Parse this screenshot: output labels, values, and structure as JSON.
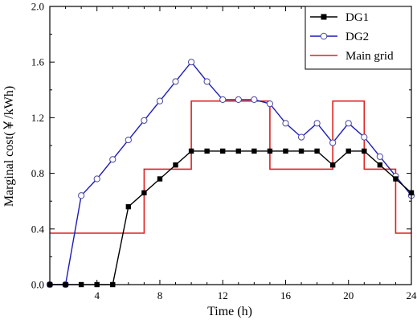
{
  "chart_data": {
    "type": "line",
    "xlabel": "Time (h)",
    "ylabel": "Marginal cost(￥/kWh)",
    "xlim": [
      1,
      24
    ],
    "ylim": [
      0.0,
      2.0
    ],
    "x_ticks": [
      4,
      8,
      12,
      16,
      20,
      24
    ],
    "x_tick_labels": [
      "4",
      "8",
      "12",
      "16",
      "20",
      "24"
    ],
    "y_ticks": [
      0.0,
      0.4,
      0.8,
      1.2,
      1.6,
      2.0
    ],
    "y_tick_labels": [
      "0.0",
      "0.4",
      "0.8",
      "1.2",
      "1.6",
      "2.0"
    ],
    "legend_position": "top-right",
    "series": [
      {
        "name": "DG1",
        "color": "#000000",
        "style": "line-square-filled",
        "x": [
          1,
          2,
          3,
          4,
          5,
          6,
          7,
          8,
          9,
          10,
          11,
          12,
          13,
          14,
          15,
          16,
          17,
          18,
          19,
          20,
          21,
          22,
          23,
          24
        ],
        "values": [
          0,
          0,
          0,
          0,
          0,
          0.56,
          0.66,
          0.76,
          0.86,
          0.96,
          0.96,
          0.96,
          0.96,
          0.96,
          0.96,
          0.96,
          0.96,
          0.96,
          0.86,
          0.96,
          0.96,
          0.86,
          0.76,
          0.66
        ]
      },
      {
        "name": "DG2",
        "color": "#1c1cb8",
        "style": "line-circle-open",
        "x": [
          1,
          2,
          3,
          4,
          5,
          6,
          7,
          8,
          9,
          10,
          11,
          12,
          13,
          14,
          15,
          16,
          17,
          18,
          19,
          20,
          21,
          22,
          23,
          24
        ],
        "values": [
          0,
          0,
          0.64,
          0.76,
          0.9,
          1.04,
          1.18,
          1.32,
          1.46,
          1.6,
          1.46,
          1.33,
          1.33,
          1.33,
          1.3,
          1.16,
          1.06,
          1.16,
          1.02,
          1.16,
          1.06,
          0.92,
          0.78,
          0.64
        ]
      },
      {
        "name": "Main grid",
        "color": "#e02020",
        "style": "step",
        "breaks": [
          1,
          7,
          10,
          15,
          19,
          21,
          23,
          24
        ],
        "values": [
          0.37,
          0.83,
          1.32,
          0.83,
          1.32,
          0.83,
          0.37
        ]
      }
    ]
  }
}
